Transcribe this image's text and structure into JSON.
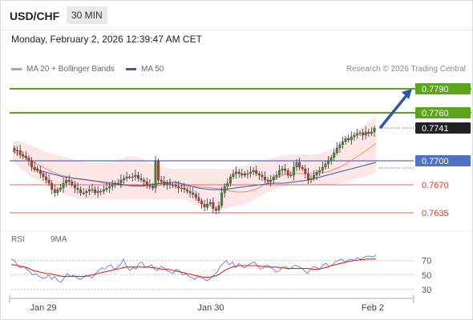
{
  "header": {
    "symbol": "USD/CHF",
    "timeframe": "30 MIN",
    "datetime": "Monday, February 2, 2026 12:39:47 AM CET",
    "credit": "Research © 2026 Trading Central"
  },
  "legend": {
    "items": [
      {
        "label": "MA 20 + Bollinger Bands",
        "color": "#f08a84"
      },
      {
        "label": "MA 50",
        "color": "#3a5ba8"
      }
    ]
  },
  "rsi_legend": {
    "items": [
      {
        "label": "RSI",
        "color": "#5b7fd6"
      },
      {
        "label": "9MA",
        "color": "#e0241c"
      }
    ]
  },
  "colors": {
    "resistance": "#5aa51a",
    "pivot": "#4f72c4",
    "support": "#e0645e",
    "candle_up": "#3c8a2e",
    "candle_down": "#c0392b",
    "band_fill": "#fde3e3",
    "arrow": "#2c59a6"
  },
  "chart_data": [
    {
      "type": "candlestick",
      "instrument": "USD/CHF",
      "interval": "30 MIN",
      "ylim": [
        0.7615,
        0.7805
      ],
      "x_ticks": [
        "Jan 29",
        "Jan 30",
        "Feb 2"
      ],
      "levels": [
        {
          "label": "0.7790",
          "value": 0.779,
          "kind": "resistance"
        },
        {
          "label": "0.7760",
          "value": 0.776,
          "kind": "resistance"
        },
        {
          "label": "0.7741",
          "value": 0.7741,
          "kind": "last"
        },
        {
          "label": "0.7700",
          "value": 0.77,
          "kind": "pivot"
        },
        {
          "label": "0.7670",
          "value": 0.767,
          "kind": "support"
        },
        {
          "label": "0.7635",
          "value": 0.7635,
          "kind": "support"
        }
      ],
      "close": [
        0.7712,
        0.7713,
        0.7708,
        0.7706,
        0.7704,
        0.77,
        0.7692,
        0.769,
        0.7688,
        0.7684,
        0.768,
        0.7676,
        0.7672,
        0.7664,
        0.766,
        0.7664,
        0.7666,
        0.7672,
        0.7676,
        0.7674,
        0.767,
        0.7666,
        0.7664,
        0.766,
        0.766,
        0.7662,
        0.7664,
        0.7664,
        0.766,
        0.7662,
        0.7662,
        0.7664,
        0.7666,
        0.7668,
        0.767,
        0.7672,
        0.7672,
        0.7676,
        0.7678,
        0.768,
        0.768,
        0.768,
        0.7682,
        0.7678,
        0.7676,
        0.7674,
        0.767,
        0.7668,
        0.7666,
        0.77,
        0.7676,
        0.7674,
        0.767,
        0.7672,
        0.767,
        0.767,
        0.7668,
        0.7666,
        0.7666,
        0.7664,
        0.7662,
        0.766,
        0.7658,
        0.7654,
        0.765,
        0.7646,
        0.7642,
        0.7646,
        0.7648,
        0.764,
        0.7638,
        0.7644,
        0.766,
        0.7668,
        0.7672,
        0.768,
        0.7684,
        0.7686,
        0.7684,
        0.7682,
        0.7684,
        0.7684,
        0.7686,
        0.7688,
        0.7684,
        0.7682,
        0.768,
        0.7676,
        0.7674,
        0.7676,
        0.768,
        0.7682,
        0.7688,
        0.769,
        0.7688,
        0.7682,
        0.7682,
        0.7692,
        0.7698,
        0.7692,
        0.769,
        0.7684,
        0.7676,
        0.7678,
        0.7682,
        0.7686,
        0.7688,
        0.7692,
        0.7696,
        0.77,
        0.7704,
        0.771,
        0.7716,
        0.772,
        0.7724,
        0.7728,
        0.7726,
        0.773,
        0.7732,
        0.7734,
        0.7735,
        0.7732,
        0.7736,
        0.7734,
        0.7736,
        0.7741
      ],
      "ma20_bollinger": {
        "ma20": [
          0.7712,
          0.7708,
          0.7704,
          0.77,
          0.7696,
          0.7692,
          0.7688,
          0.7685,
          0.7682,
          0.768,
          0.7678,
          0.7677,
          0.7676,
          0.7675,
          0.7674,
          0.7672,
          0.7671,
          0.767,
          0.7669,
          0.7669,
          0.7668,
          0.7668,
          0.7668,
          0.7668,
          0.7669,
          0.767,
          0.767,
          0.767,
          0.7669,
          0.7668,
          0.7668,
          0.7667,
          0.7667,
          0.7666,
          0.7665,
          0.7664,
          0.7662,
          0.7661,
          0.7661,
          0.7662,
          0.7664,
          0.7668,
          0.7672,
          0.7677,
          0.768,
          0.7683,
          0.7684,
          0.7684,
          0.7684,
          0.7684,
          0.7684,
          0.7685,
          0.7686,
          0.7689,
          0.7692,
          0.7696,
          0.7701,
          0.7706,
          0.7711,
          0.7716,
          0.7722
        ],
        "upper": [
          0.7724,
          0.7724,
          0.7722,
          0.772,
          0.7716,
          0.7712,
          0.771,
          0.7708,
          0.7706,
          0.7704,
          0.7702,
          0.77,
          0.7698,
          0.7698,
          0.7698,
          0.7698,
          0.7698,
          0.77,
          0.7702,
          0.7706,
          0.7706,
          0.7704,
          0.77,
          0.7696,
          0.7694,
          0.7692,
          0.769,
          0.769,
          0.769,
          0.769,
          0.769,
          0.769,
          0.769,
          0.769,
          0.769,
          0.769,
          0.769,
          0.7692,
          0.7694,
          0.7696,
          0.7698,
          0.77,
          0.7702,
          0.7704,
          0.7706,
          0.7707,
          0.7708,
          0.7708,
          0.7708,
          0.7708,
          0.7708,
          0.771,
          0.7712,
          0.7716,
          0.772,
          0.7726,
          0.7732,
          0.7738,
          0.7744,
          0.775,
          0.7756
        ],
        "lower": [
          0.77,
          0.7692,
          0.7686,
          0.768,
          0.7676,
          0.7672,
          0.7668,
          0.7664,
          0.766,
          0.7656,
          0.7654,
          0.7652,
          0.7652,
          0.7652,
          0.7652,
          0.7652,
          0.7652,
          0.7652,
          0.7652,
          0.7652,
          0.7652,
          0.7652,
          0.7652,
          0.7652,
          0.7652,
          0.7652,
          0.7652,
          0.7652,
          0.7652,
          0.765,
          0.7646,
          0.7642,
          0.764,
          0.764,
          0.764,
          0.764,
          0.7642,
          0.7644,
          0.7646,
          0.7648,
          0.7652,
          0.7656,
          0.766,
          0.7664,
          0.7666,
          0.7668,
          0.767,
          0.767,
          0.767,
          0.767,
          0.767,
          0.767,
          0.767,
          0.767,
          0.7672,
          0.7674,
          0.7676,
          0.7678,
          0.768,
          0.7682,
          0.7686
        ]
      },
      "ma50": [
        0.769,
        0.7688,
        0.7686,
        0.7684,
        0.7682,
        0.768,
        0.7679,
        0.7678,
        0.7677,
        0.7676,
        0.7675,
        0.7674,
        0.7673,
        0.7672,
        0.7671,
        0.767,
        0.7669,
        0.7669,
        0.7669,
        0.767,
        0.7671,
        0.7672,
        0.7673,
        0.7673,
        0.7672,
        0.767,
        0.7668,
        0.7666,
        0.7665,
        0.7664,
        0.7664,
        0.7664,
        0.7665,
        0.7666,
        0.7667,
        0.7668,
        0.7669,
        0.767,
        0.7671,
        0.7672,
        0.7672,
        0.7672,
        0.7673,
        0.7674,
        0.7675,
        0.7676,
        0.7678,
        0.768,
        0.7682,
        0.7684,
        0.7686,
        0.7688,
        0.769,
        0.7692,
        0.7694,
        0.7696,
        0.7698
      ],
      "projection": {
        "from": 0.7741,
        "to": 0.779
      }
    },
    {
      "type": "line",
      "title": "RSI",
      "ylim": [
        20,
        85
      ],
      "y_ticks": [
        70,
        50,
        30
      ],
      "series": [
        {
          "name": "RSI",
          "values": [
            72,
            70,
            64,
            60,
            62,
            58,
            54,
            50,
            52,
            48,
            46,
            46,
            50,
            44,
            48,
            42,
            40,
            46,
            52,
            48,
            50,
            46,
            44,
            46,
            50,
            48,
            46,
            52,
            56,
            60,
            58,
            62,
            64,
            58,
            60,
            64,
            72,
            62,
            56,
            60,
            58,
            66,
            68,
            60,
            62,
            64,
            58,
            56,
            62,
            60,
            56,
            54,
            52,
            58,
            56,
            50,
            52,
            48,
            46,
            44,
            48,
            46,
            44,
            42,
            46,
            50,
            54,
            62,
            66,
            70,
            64,
            68,
            60,
            66,
            62,
            60,
            64,
            66,
            68,
            62,
            58,
            60,
            64,
            62,
            58,
            54,
            56,
            60,
            62,
            58,
            60,
            64,
            62,
            60,
            56,
            52,
            58,
            62,
            60,
            58,
            64,
            66,
            62,
            64,
            68,
            70,
            72,
            68,
            70,
            72,
            70,
            74,
            72,
            74,
            76,
            76,
            75,
            77
          ]
        },
        {
          "name": "9MA",
          "values": [
            64,
            64,
            63,
            62,
            61,
            60,
            58,
            56,
            55,
            54,
            53,
            52,
            52,
            51,
            50,
            49,
            48,
            48,
            48,
            48,
            48,
            48,
            48,
            48,
            49,
            50,
            51,
            52,
            53,
            54,
            55,
            56,
            57,
            58,
            59,
            60,
            61,
            61,
            61,
            61,
            61,
            61,
            61,
            61,
            60,
            60,
            59,
            58,
            58,
            58,
            57,
            56,
            55,
            54,
            53,
            52,
            51,
            50,
            49,
            48,
            47,
            47,
            47,
            48,
            49,
            51,
            54,
            57,
            59,
            61,
            62,
            63,
            63,
            63,
            63,
            63,
            63,
            63,
            62,
            62,
            61,
            61,
            61,
            61,
            60,
            60,
            59,
            59,
            59,
            59,
            59,
            59,
            59,
            59,
            58,
            58,
            58,
            59,
            60,
            61,
            63,
            64,
            65,
            66,
            67,
            68,
            69,
            70,
            70,
            71,
            71,
            72,
            72,
            72,
            72
          ]
        }
      ]
    }
  ]
}
